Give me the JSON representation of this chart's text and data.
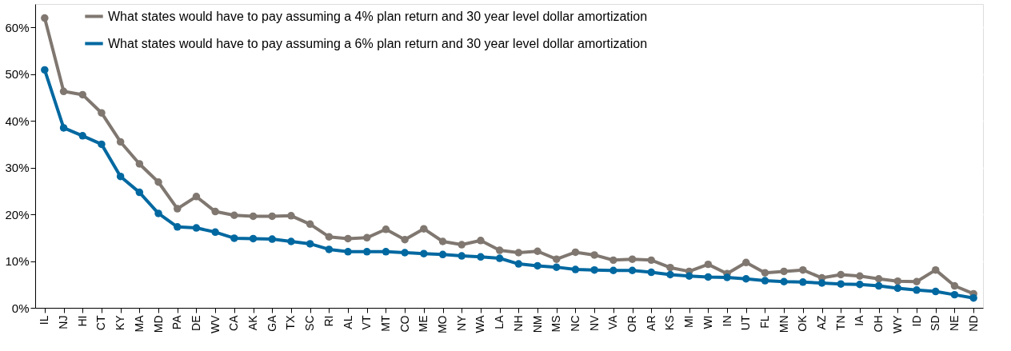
{
  "chart_data": {
    "type": "line",
    "categories": [
      "IL",
      "NJ",
      "HI",
      "CT",
      "KY",
      "MA",
      "MD",
      "PA",
      "DE",
      "WV",
      "CA",
      "AK",
      "GA",
      "TX",
      "SC",
      "RI",
      "AL",
      "VT",
      "MT",
      "CO",
      "ME",
      "MO",
      "NY",
      "WA",
      "LA",
      "NH",
      "NM",
      "MS",
      "NC",
      "NV",
      "VA",
      "OR",
      "AR",
      "KS",
      "MI",
      "WI",
      "IN",
      "UT",
      "FL",
      "MN",
      "OK",
      "AZ",
      "TN",
      "IA",
      "OH",
      "WY",
      "ID",
      "SD",
      "NE",
      "ND"
    ],
    "series": [
      {
        "name": "What states would have to pay assuming a 4% plan return and 30 year level dollar amortization",
        "color": "#7f7770",
        "values": [
          62,
          46.3,
          45.6,
          41.7,
          35.5,
          30.8,
          26.9,
          21.2,
          23.8,
          20.6,
          19.8,
          19.6,
          19.6,
          19.7,
          17.9,
          15.2,
          14.8,
          15,
          16.8,
          14.6,
          16.9,
          14.2,
          13.5,
          14.4,
          12.3,
          11.8,
          12.1,
          10.4,
          11.9,
          11.3,
          10.2,
          10.4,
          10.2,
          8.6,
          7.8,
          9.3,
          7.3,
          9.7,
          7.5,
          7.8,
          8.1,
          6.4,
          7.1,
          6.8,
          6.2,
          5.7,
          5.6,
          8.1,
          4.7,
          3.0
        ]
      },
      {
        "name": "What states would have to pay assuming a 6% plan return and 30 year level dollar amortization",
        "color": "#0068a0",
        "values": [
          50.9,
          38.5,
          36.8,
          35,
          28.1,
          24.7,
          20.2,
          17.3,
          17.1,
          16.2,
          14.9,
          14.8,
          14.7,
          14.2,
          13.7,
          12.5,
          12.0,
          12.0,
          12.0,
          11.8,
          11.6,
          11.4,
          11.1,
          10.9,
          10.6,
          9.4,
          9.0,
          8.7,
          8.2,
          8.1,
          8.0,
          8.0,
          7.6,
          7.1,
          6.8,
          6.6,
          6.5,
          6.2,
          5.8,
          5.6,
          5.5,
          5.3,
          5.1,
          5.0,
          4.7,
          4.2,
          3.8,
          3.5,
          2.8,
          2.1
        ]
      }
    ],
    "ylim": [
      0,
      65
    ],
    "yticks": [
      {
        "value": 0,
        "label": "0%"
      },
      {
        "value": 10,
        "label": "10%"
      },
      {
        "value": 20,
        "label": "20%"
      },
      {
        "value": 30,
        "label": "30%"
      },
      {
        "value": 40,
        "label": "40%"
      },
      {
        "value": 50,
        "label": "50%"
      },
      {
        "value": 60,
        "label": "60%"
      }
    ],
    "grid": "y",
    "legend": "top",
    "marker": "circle",
    "line_style": "solid"
  }
}
